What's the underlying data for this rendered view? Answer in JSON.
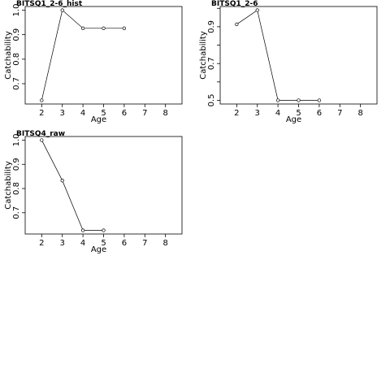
{
  "chart_data": [
    {
      "type": "line",
      "title": "BITSQ1_2-6_hist",
      "x_label": "Age",
      "y_label": "Catchability",
      "x": [
        2,
        3,
        4,
        5,
        6
      ],
      "values": [
        0.632,
        1.0,
        0.926,
        0.926,
        0.926
      ],
      "xlim": [
        1.2,
        8.8
      ],
      "ylim": [
        0.617,
        1.015
      ],
      "xticks": [
        2,
        3,
        4,
        5,
        6,
        7,
        8
      ],
      "yticks": [
        0.7,
        0.8,
        0.9,
        {
          "value": 1.0,
          "label": "1.0"
        }
      ],
      "color": "#000000"
    },
    {
      "type": "line",
      "title": "BITSQ1_2-6",
      "x_label": "Age",
      "y_label": "Catchability",
      "x": [
        2,
        3,
        4,
        5,
        6
      ],
      "values": [
        0.913,
        0.99,
        0.5,
        0.5,
        0.5
      ],
      "xlim": [
        1.2,
        8.8
      ],
      "ylim": [
        0.48,
        1.01
      ],
      "xticks": [
        2,
        3,
        4,
        5,
        6,
        7,
        8
      ],
      "yticks": [
        0.5,
        0.7,
        0.9
      ],
      "yminorticks": [
        0.6,
        0.8,
        1.0
      ],
      "color": "#000000"
    },
    {
      "type": "line",
      "title": "BITSQ4_raw",
      "x_label": "Age",
      "y_label": "Catchability",
      "x": [
        2,
        3,
        4,
        5
      ],
      "values": [
        1.0,
        0.833,
        0.627,
        0.627
      ],
      "xlim": [
        1.2,
        8.8
      ],
      "ylim": [
        0.612,
        1.015
      ],
      "xticks": [
        2,
        3,
        4,
        5,
        6,
        7,
        8
      ],
      "yticks": [
        0.7,
        0.8,
        0.9,
        {
          "value": 1.0,
          "label": "1.0"
        }
      ],
      "color": "#000000"
    }
  ]
}
